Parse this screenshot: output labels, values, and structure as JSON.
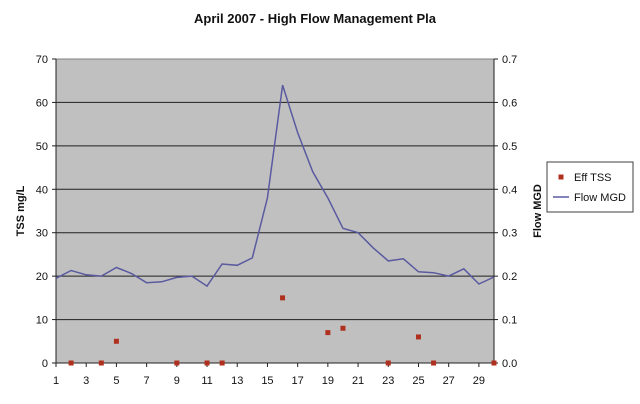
{
  "chart_data": {
    "type": "line",
    "title": "April 2007 - High Flow Management Pla",
    "ylabel": "TSS mg/L",
    "y2label": "Flow MGD",
    "ylim": [
      0,
      70
    ],
    "y2lim": [
      0,
      0.7
    ],
    "xlim": [
      1,
      30
    ],
    "y_ticks": [
      "0",
      "10",
      "20",
      "30",
      "40",
      "50",
      "60",
      "70"
    ],
    "y2_ticks": [
      "0.0",
      "0.1",
      "0.2",
      "0.3",
      "0.4",
      "0.5",
      "0.6",
      "0.7"
    ],
    "x_ticks": [
      "1",
      "3",
      "5",
      "7",
      "9",
      "11",
      "13",
      "15",
      "17",
      "19",
      "21",
      "23",
      "25",
      "27",
      "29"
    ],
    "grid": true,
    "legend_position": "right",
    "plot_background": "#c0c0c0",
    "series": [
      {
        "name": "Eff TSS",
        "type": "scatter",
        "axis": "left",
        "color": "#b03020",
        "x": [
          2,
          4,
          5,
          9,
          11,
          12,
          16,
          19,
          20,
          23,
          25,
          26,
          30
        ],
        "y": [
          0,
          0,
          5,
          0,
          0,
          0,
          15,
          7,
          8,
          0,
          6,
          0,
          0
        ]
      },
      {
        "name": "Flow MGD",
        "type": "line",
        "axis": "right",
        "color": "#5a5aa0",
        "x": [
          1,
          2,
          3,
          4,
          5,
          6,
          7,
          8,
          9,
          10,
          11,
          12,
          13,
          14,
          15,
          16,
          17,
          18,
          19,
          20,
          21,
          22,
          23,
          24,
          25,
          26,
          27,
          28,
          29,
          30
        ],
        "y": [
          0.195,
          0.213,
          0.203,
          0.2,
          0.22,
          0.206,
          0.185,
          0.187,
          0.197,
          0.2,
          0.177,
          0.228,
          0.225,
          0.242,
          0.38,
          0.64,
          0.53,
          0.44,
          0.38,
          0.31,
          0.3,
          0.265,
          0.235,
          0.24,
          0.21,
          0.208,
          0.2,
          0.217,
          0.182,
          0.198
        ]
      }
    ]
  }
}
